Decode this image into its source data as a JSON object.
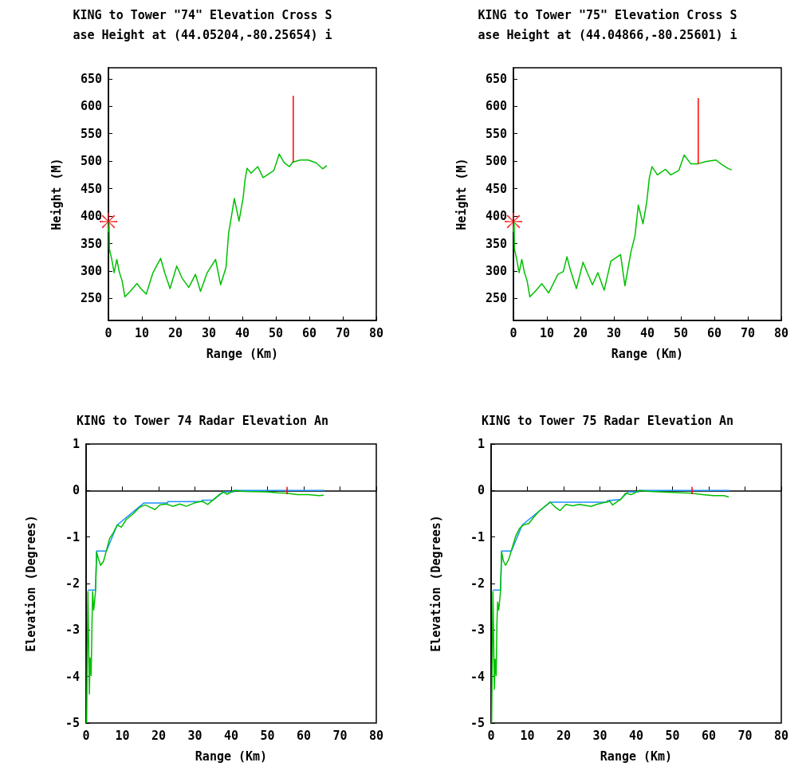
{
  "chart_data": [
    {
      "type": "line",
      "title": "KING to Tower \"74\" Elevation Cross S",
      "subtitle": "ase Height at (44.05204,-80.25654) i",
      "xlabel": "Range (Km)",
      "ylabel": "Height (M)",
      "xlim": [
        0,
        80
      ],
      "xticks": [
        0,
        10,
        20,
        30,
        40,
        50,
        60,
        70,
        80
      ],
      "ylim": [
        210,
        670
      ],
      "yticks": [
        250,
        300,
        350,
        400,
        450,
        500,
        550,
        600,
        650
      ],
      "series": [
        {
          "color": "#00c000",
          "x": [
            0,
            0.2,
            0.3,
            1,
            1.7,
            2.5,
            3.3,
            4.1,
            4.9,
            6.5,
            8.5,
            9.7,
            11.3,
            13.3,
            15.6,
            16.8,
            18.4,
            20.4,
            22,
            24,
            26,
            27.5,
            29.5,
            32,
            33.5,
            35.1,
            35.9,
            36.7,
            37.6,
            39,
            40.2,
            40.8,
            41.4,
            42.6,
            44.6,
            46.2,
            49.4,
            51,
            52.5,
            54.1,
            55,
            57.3,
            59.7,
            62,
            64,
            65.2
          ],
          "values": [
            371,
            388,
            340,
            321,
            297,
            321,
            297,
            282,
            253,
            263,
            277,
            268,
            258,
            297,
            323,
            297,
            268,
            309,
            287,
            270,
            294,
            263,
            297,
            321,
            275,
            306,
            369,
            398,
            432,
            391,
            432,
            466,
            487,
            478,
            490,
            470,
            483,
            513,
            497,
            490,
            498,
            502,
            502,
            497,
            486,
            492
          ]
        },
        {
          "color": "#ff0000",
          "x": [
            55.2,
            55.2
          ],
          "values": [
            498,
            619
          ]
        },
        {
          "type": "scatter",
          "color": "#ff0000",
          "marker": "cross",
          "x": [
            0
          ],
          "values": [
            390
          ]
        }
      ]
    },
    {
      "type": "line",
      "title": "KING to Tower \"75\" Elevation Cross S",
      "subtitle": "ase Height at (44.04866,-80.25601) i",
      "xlabel": "Range (Km)",
      "ylabel": "Height (M)",
      "xlim": [
        0,
        80
      ],
      "xticks": [
        0,
        10,
        20,
        30,
        40,
        50,
        60,
        70,
        80
      ],
      "ylim": [
        210,
        670
      ],
      "yticks": [
        250,
        300,
        350,
        400,
        450,
        500,
        550,
        600,
        650
      ],
      "series": [
        {
          "color": "#00c000",
          "x": [
            0,
            0.2,
            0.3,
            1,
            1.7,
            2.5,
            3.3,
            4.1,
            4.9,
            6.5,
            8.5,
            10.5,
            13.3,
            14.9,
            16,
            17,
            18.8,
            20.8,
            22.4,
            23.6,
            25.2,
            27.1,
            29.1,
            32,
            33.3,
            35.1,
            36.3,
            37.3,
            38.7,
            39.8,
            40.6,
            41.4,
            43,
            45.4,
            47,
            49.4,
            51,
            53,
            55,
            57.3,
            60.5,
            62,
            64,
            65.2
          ],
          "values": [
            371,
            388,
            340,
            321,
            297,
            321,
            297,
            282,
            253,
            263,
            277,
            260,
            294,
            299,
            326,
            302,
            268,
            316,
            292,
            275,
            297,
            265,
            318,
            330,
            273,
            335,
            364,
            420,
            386,
            425,
            470,
            490,
            475,
            485,
            475,
            483,
            511,
            495,
            495,
            499,
            502,
            495,
            487,
            484
          ]
        },
        {
          "color": "#ff0000",
          "x": [
            55.2,
            55.2
          ],
          "values": [
            495,
            615
          ]
        },
        {
          "type": "scatter",
          "color": "#ff0000",
          "marker": "cross",
          "x": [
            0
          ],
          "values": [
            390
          ]
        }
      ]
    },
    {
      "type": "line",
      "title": "KING to Tower 74 Radar Elevation An",
      "xlabel": "Range (Km)",
      "ylabel": "Elevation (Degrees)",
      "xlim": [
        0,
        80
      ],
      "xticks": [
        0,
        10,
        20,
        30,
        40,
        50,
        60,
        70,
        80
      ],
      "ylim": [
        -5,
        1
      ],
      "yticks": [
        -5,
        -4,
        -3,
        -2,
        -1,
        0,
        1
      ],
      "series": [
        {
          "color": "#1e90ff",
          "x": [
            0.5,
            2.6,
            2.9,
            5.6,
            8.6,
            15.9,
            22.5,
            22.5,
            32,
            32,
            34.9,
            37.8,
            40.8,
            40.8,
            65.7
          ],
          "values": [
            -2.14,
            -2.14,
            -1.3,
            -1.3,
            -0.74,
            -0.27,
            -0.27,
            -0.24,
            -0.24,
            -0.21,
            -0.21,
            -0.03,
            -0.03,
            0,
            0
          ]
        },
        {
          "color": "#00c000",
          "x": [
            0.15,
            0.5,
            0.9,
            1.1,
            1.4,
            1.6,
            1.8,
            2.1,
            2.6,
            2.9,
            3.4,
            4,
            4.8,
            5.6,
            6.5,
            7.5,
            8.6,
            9.7,
            11.1,
            13,
            14.8,
            16.3,
            17.7,
            19,
            20.3,
            22.1,
            23.9,
            25.8,
            27.6,
            29.8,
            32,
            33.5,
            34.9,
            36.7,
            37.8,
            38.9,
            40.8,
            43.7,
            49.6,
            52.9,
            55.4,
            58.3,
            61.3,
            64.2,
            65.5
          ],
          "values": [
            -5,
            -2.17,
            -4.38,
            -3.6,
            -3.98,
            -2.98,
            -2.17,
            -2.57,
            -2.17,
            -1.32,
            -1.47,
            -1.61,
            -1.52,
            -1.29,
            -1.03,
            -0.91,
            -0.74,
            -0.79,
            -0.62,
            -0.5,
            -0.36,
            -0.31,
            -0.36,
            -0.41,
            -0.31,
            -0.29,
            -0.34,
            -0.29,
            -0.34,
            -0.27,
            -0.23,
            -0.3,
            -0.21,
            -0.09,
            -0.03,
            -0.08,
            0,
            -0.02,
            -0.03,
            -0.05,
            -0.06,
            -0.09,
            -0.09,
            -0.11,
            -0.1
          ]
        },
        {
          "color": "#ff0000",
          "x": [
            55.4,
            55.4
          ],
          "values": [
            -0.08,
            0.08
          ]
        }
      ]
    },
    {
      "type": "line",
      "title": "KING to Tower 75 Radar Elevation An",
      "xlabel": "Range (Km)",
      "ylabel": "Elevation (Degrees)",
      "xlim": [
        0,
        80
      ],
      "xticks": [
        0,
        10,
        20,
        30,
        40,
        50,
        60,
        70,
        80
      ],
      "ylim": [
        -5,
        1
      ],
      "yticks": [
        -5,
        -4,
        -3,
        -2,
        -1,
        0,
        1
      ],
      "series": [
        {
          "color": "#1e90ff",
          "x": [
            0.5,
            2.6,
            2.9,
            5.6,
            8.6,
            16.3,
            32,
            32,
            35.7,
            37.8,
            40.8,
            40.8,
            65.7
          ],
          "values": [
            -2.14,
            -2.14,
            -1.3,
            -1.3,
            -0.74,
            -0.25,
            -0.25,
            -0.22,
            -0.19,
            -0.03,
            -0.03,
            0,
            0
          ]
        },
        {
          "color": "#00c000",
          "x": [
            0.15,
            0.5,
            0.9,
            1.1,
            1.4,
            1.6,
            1.8,
            2.1,
            2.6,
            2.9,
            3.4,
            4,
            4.9,
            5.6,
            6.7,
            7.8,
            8.9,
            10.4,
            11.9,
            13.3,
            16.3,
            17.7,
            19,
            20.6,
            22.5,
            24.3,
            27.6,
            29.1,
            32.7,
            33.5,
            35.7,
            37.1,
            38.6,
            40.8,
            43.7,
            52.9,
            55.4,
            58.3,
            61.3,
            64.2,
            65.5
          ],
          "values": [
            -5,
            -2.17,
            -4.27,
            -3.63,
            -3.98,
            -2.87,
            -2.4,
            -2.57,
            -2.17,
            -1.32,
            -1.52,
            -1.61,
            -1.47,
            -1.29,
            -1,
            -0.82,
            -0.74,
            -0.71,
            -0.56,
            -0.44,
            -0.25,
            -0.36,
            -0.43,
            -0.3,
            -0.33,
            -0.3,
            -0.34,
            -0.3,
            -0.23,
            -0.31,
            -0.19,
            -0.06,
            -0.09,
            0,
            -0.02,
            -0.05,
            -0.06,
            -0.09,
            -0.11,
            -0.11,
            -0.14
          ]
        },
        {
          "color": "#ff0000",
          "x": [
            55.4,
            55.4
          ],
          "values": [
            -0.08,
            0.08
          ]
        }
      ]
    }
  ]
}
